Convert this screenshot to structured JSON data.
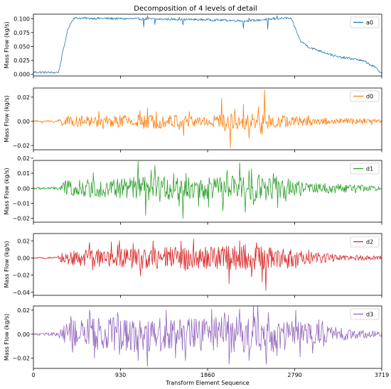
{
  "figure": {
    "title": "Decomposition of 4 levels of detail",
    "xlabel": "Transform Element Sequence"
  },
  "chart_data": [
    {
      "type": "line",
      "name": "a0",
      "color": "#1f77b4",
      "ylabel": "Mass Flow (kg/s)",
      "xlim": [
        0,
        3719
      ],
      "ylim": [
        -0.003,
        0.108
      ],
      "yticks": [
        0.0,
        0.025,
        0.05,
        0.075,
        0.1
      ],
      "ytick_labels": [
        "0.000",
        "0.025",
        "0.050",
        "0.075",
        "0.100"
      ],
      "xticks": [
        0,
        930,
        1860,
        2790,
        3719
      ],
      "xtick_labels": [
        "0",
        "930",
        "1860",
        "2790",
        "3719"
      ],
      "show_xtick_labels": false,
      "legend": "top-right",
      "profile": [
        [
          0,
          0.004
        ],
        [
          230,
          0.003
        ],
        [
          270,
          0.004
        ],
        [
          320,
          0.045
        ],
        [
          370,
          0.082
        ],
        [
          400,
          0.092
        ],
        [
          430,
          0.101
        ],
        [
          930,
          0.1
        ],
        [
          1860,
          0.098
        ],
        [
          2300,
          0.096
        ],
        [
          2600,
          0.1
        ],
        [
          2700,
          0.101
        ],
        [
          2750,
          0.1
        ],
        [
          2790,
          0.085
        ],
        [
          2850,
          0.06
        ],
        [
          2950,
          0.048
        ],
        [
          3100,
          0.04
        ],
        [
          3250,
          0.031
        ],
        [
          3450,
          0.027
        ],
        [
          3550,
          0.022
        ],
        [
          3650,
          0.012
        ],
        [
          3719,
          0.002
        ]
      ],
      "spikes": [
        [
          1180,
          -0.015
        ],
        [
          1215,
          0.006
        ],
        [
          1300,
          -0.01
        ],
        [
          1560,
          0.004
        ],
        [
          1600,
          -0.01
        ],
        [
          2240,
          -0.014
        ],
        [
          2300,
          0.005
        ],
        [
          2500,
          -0.018
        ],
        [
          2560,
          0.003
        ],
        [
          2600,
          0.005
        ]
      ]
    },
    {
      "type": "line",
      "name": "d0",
      "color": "#ff7f0e",
      "ylabel": "Mass Flow (kg/s)",
      "xlim": [
        0,
        3719
      ],
      "ylim": [
        -0.0235,
        0.0275
      ],
      "yticks": [
        -0.02,
        0.0,
        0.02
      ],
      "ytick_labels": [
        "−0.02",
        "0.00",
        "0.02"
      ],
      "xticks": [
        0,
        930,
        1860,
        2790,
        3719
      ],
      "xtick_labels": [
        "0",
        "930",
        "1860",
        "2790",
        "3719"
      ],
      "show_xtick_labels": false,
      "legend": "top-right",
      "envelope": [
        [
          0,
          0.0008
        ],
        [
          250,
          0.001
        ],
        [
          300,
          0.004
        ],
        [
          900,
          0.005
        ],
        [
          1300,
          0.006
        ],
        [
          1800,
          0.005
        ],
        [
          2200,
          0.007
        ],
        [
          2600,
          0.006
        ],
        [
          2800,
          0.004
        ],
        [
          3200,
          0.003
        ],
        [
          3719,
          0.002
        ]
      ],
      "spikes": [
        [
          1140,
          0.009
        ],
        [
          1180,
          -0.006
        ],
        [
          1220,
          0.011
        ],
        [
          1310,
          0.008
        ],
        [
          1560,
          -0.007
        ],
        [
          1605,
          -0.012
        ],
        [
          1660,
          0.008
        ],
        [
          2010,
          0.019
        ],
        [
          2040,
          -0.008
        ],
        [
          2100,
          -0.022
        ],
        [
          2150,
          0.01
        ],
        [
          2240,
          0.014
        ],
        [
          2300,
          -0.014
        ],
        [
          2400,
          0.012
        ],
        [
          2430,
          -0.01
        ],
        [
          2465,
          0.026
        ],
        [
          2500,
          -0.006
        ]
      ]
    },
    {
      "type": "line",
      "name": "d1",
      "color": "#2ca02c",
      "ylabel": "Mass Flow (kg/s)",
      "xlim": [
        0,
        3719
      ],
      "ylim": [
        -0.0225,
        0.0185
      ],
      "yticks": [
        -0.02,
        -0.01,
        0.0,
        0.01,
        0.02
      ],
      "ytick_labels": [
        "−0.02",
        "−0.01",
        "0.00",
        "0.01",
        "0.02"
      ],
      "xticks": [
        0,
        930,
        1860,
        2790,
        3719
      ],
      "xtick_labels": [
        "0",
        "930",
        "1860",
        "2790",
        "3719"
      ],
      "show_xtick_labels": false,
      "legend": "top-right",
      "envelope": [
        [
          0,
          0.0008
        ],
        [
          250,
          0.001
        ],
        [
          330,
          0.005
        ],
        [
          900,
          0.007
        ],
        [
          1300,
          0.008
        ],
        [
          1800,
          0.007
        ],
        [
          2200,
          0.009
        ],
        [
          2600,
          0.008
        ],
        [
          2900,
          0.004
        ],
        [
          3300,
          0.003
        ],
        [
          3719,
          0.0015
        ]
      ],
      "spikes": [
        [
          380,
          0.005
        ],
        [
          420,
          -0.004
        ],
        [
          1120,
          0.018
        ],
        [
          1140,
          -0.005
        ],
        [
          1200,
          -0.018
        ],
        [
          1260,
          0.012
        ],
        [
          1300,
          0.015
        ],
        [
          1350,
          -0.009
        ],
        [
          1500,
          0.01
        ],
        [
          1560,
          -0.012
        ],
        [
          1600,
          -0.02
        ],
        [
          1630,
          0.01
        ],
        [
          1760,
          -0.012
        ],
        [
          2020,
          -0.015
        ],
        [
          2070,
          0.012
        ],
        [
          2120,
          0.008
        ],
        [
          2200,
          0.017
        ],
        [
          2260,
          -0.016
        ],
        [
          2300,
          0.012
        ],
        [
          2350,
          -0.011
        ],
        [
          2410,
          0.009
        ],
        [
          2560,
          0.01
        ],
        [
          2610,
          -0.013
        ]
      ]
    },
    {
      "type": "line",
      "name": "d2",
      "color": "#d62728",
      "ylabel": "Mass Flow (kg/s)",
      "xlim": [
        0,
        3719
      ],
      "ylim": [
        -0.0435,
        0.0285
      ],
      "yticks": [
        -0.04,
        -0.02,
        0.0,
        0.02
      ],
      "ytick_labels": [
        "−0.04",
        "−0.02",
        "0.00",
        "0.02"
      ],
      "xticks": [
        0,
        930,
        1860,
        2790,
        3719
      ],
      "xtick_labels": [
        "0",
        "930",
        "1860",
        "2790",
        "3719"
      ],
      "show_xtick_labels": false,
      "legend": "top-right",
      "envelope": [
        [
          0,
          0.0008
        ],
        [
          250,
          0.001
        ],
        [
          320,
          0.008
        ],
        [
          900,
          0.012
        ],
        [
          1300,
          0.013
        ],
        [
          1800,
          0.013
        ],
        [
          2200,
          0.015
        ],
        [
          2600,
          0.013
        ],
        [
          2900,
          0.008
        ],
        [
          3300,
          0.004
        ],
        [
          3719,
          0.002
        ]
      ],
      "spikes": [
        [
          600,
          0.018
        ],
        [
          650,
          -0.01
        ],
        [
          900,
          0.015
        ],
        [
          1050,
          -0.012
        ],
        [
          1280,
          0.02
        ],
        [
          1320,
          -0.012
        ],
        [
          1580,
          0.02
        ],
        [
          1620,
          -0.015
        ],
        [
          1710,
          0.022
        ],
        [
          1760,
          -0.012
        ],
        [
          1900,
          0.012
        ],
        [
          2090,
          -0.03
        ],
        [
          2150,
          0.014
        ],
        [
          2200,
          0.02
        ],
        [
          2260,
          0.016
        ],
        [
          2330,
          -0.022
        ],
        [
          2380,
          0.018
        ],
        [
          2440,
          -0.028
        ],
        [
          2480,
          -0.038
        ],
        [
          2520,
          0.012
        ],
        [
          2750,
          0.01
        ],
        [
          2800,
          -0.012
        ]
      ]
    },
    {
      "type": "line",
      "name": "d3",
      "color": "#9467bd",
      "ylabel": "Mass Flow (kg/s)",
      "xlim": [
        0,
        3719
      ],
      "ylim": [
        -0.0285,
        0.0235
      ],
      "yticks": [
        -0.02,
        0.0,
        0.02
      ],
      "ytick_labels": [
        "−0.02",
        "0.00",
        "0.02"
      ],
      "xticks": [
        0,
        930,
        1860,
        2790,
        3719
      ],
      "xtick_labels": [
        "0",
        "930",
        "1860",
        "2790",
        "3719"
      ],
      "show_xtick_labels": true,
      "legend": "top-right",
      "envelope": [
        [
          0,
          0.001
        ],
        [
          250,
          0.0015
        ],
        [
          330,
          0.011
        ],
        [
          900,
          0.015
        ],
        [
          1300,
          0.015
        ],
        [
          1800,
          0.014
        ],
        [
          2200,
          0.016
        ],
        [
          2600,
          0.014
        ],
        [
          2900,
          0.01
        ],
        [
          3100,
          0.008
        ],
        [
          3300,
          0.005
        ],
        [
          3719,
          0.002
        ]
      ],
      "spikes": [
        [
          400,
          0.015
        ],
        [
          420,
          -0.015
        ],
        [
          600,
          0.02
        ],
        [
          650,
          -0.02
        ],
        [
          900,
          0.018
        ],
        [
          920,
          -0.017
        ],
        [
          1120,
          -0.022
        ],
        [
          1220,
          -0.027
        ],
        [
          1420,
          0.02
        ],
        [
          1520,
          -0.02
        ],
        [
          1620,
          -0.022
        ],
        [
          1900,
          0.021
        ],
        [
          2040,
          0.018
        ],
        [
          2090,
          -0.025
        ],
        [
          2200,
          0.021
        ],
        [
          2300,
          -0.022
        ],
        [
          2480,
          -0.02
        ],
        [
          2510,
          0.018
        ],
        [
          2600,
          -0.018
        ],
        [
          2800,
          0.02
        ],
        [
          2850,
          -0.019
        ],
        [
          3050,
          0.012
        ],
        [
          3100,
          -0.01
        ]
      ]
    }
  ]
}
